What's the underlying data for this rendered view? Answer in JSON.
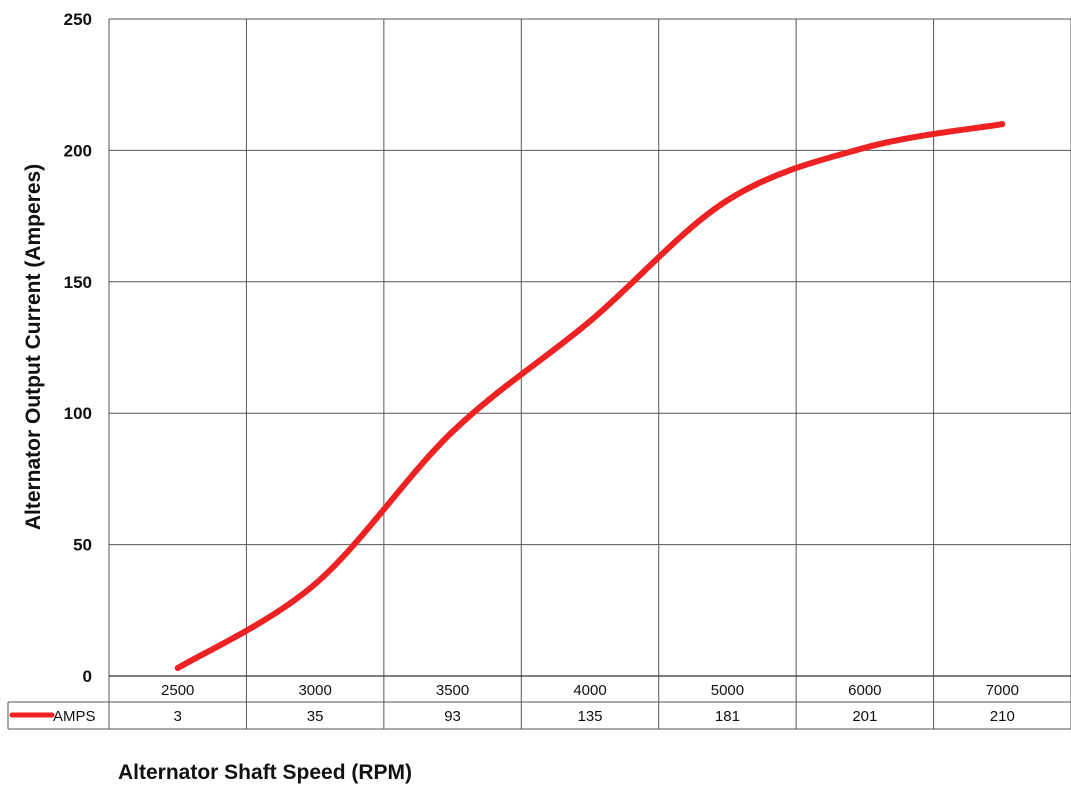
{
  "chart_data": {
    "type": "line",
    "title": "",
    "xlabel": "Alternator Shaft Speed (RPM)",
    "ylabel": "Alternator Output Current (Amperes)",
    "categories": [
      "2500",
      "3000",
      "3500",
      "4000",
      "5000",
      "6000",
      "7000"
    ],
    "series": [
      {
        "name": "AMPS",
        "values": [
          3,
          35,
          93,
          135,
          181,
          201,
          210
        ],
        "color": "#ee2222"
      }
    ],
    "ylim": [
      0,
      250
    ],
    "yticks": [
      0,
      50,
      100,
      150,
      200,
      250
    ],
    "grid": true,
    "legend": "data-table-left",
    "data_table": true
  }
}
